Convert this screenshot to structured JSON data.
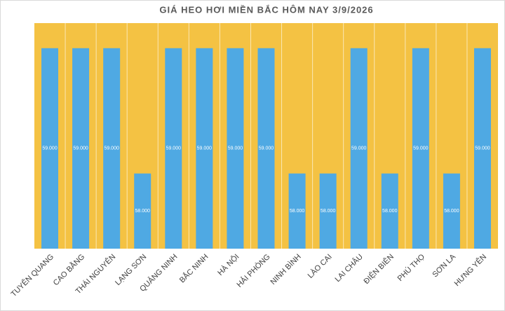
{
  "chart_data": {
    "type": "bar",
    "title": "GIÁ HEO HƠI MIỀN BẮC HÔM NAY 3/9/2026",
    "categories": [
      "TUYÊN QUANG",
      "CAO BẰNG",
      "THÁI NGUYÊN",
      "LẠNG SƠN",
      "QUẢNG NINH",
      "BẮC NINH",
      "HÀ NỘI",
      "HẢI PHÒNG",
      "NINH BÌNH",
      "LÀO CAI",
      "LAI CHÂU",
      "ĐIỆN BIÊN",
      "PHÚ THỌ",
      "SƠN LA",
      "HƯNG YÊN"
    ],
    "values": [
      59000,
      59000,
      59000,
      58000,
      59000,
      59000,
      59000,
      59000,
      58000,
      58000,
      59000,
      58000,
      59000,
      58000,
      59000
    ],
    "value_labels": [
      "59.000",
      "59.000",
      "59.000",
      "58.000",
      "59.000",
      "59.000",
      "59.000",
      "59.000",
      "58.000",
      "58.000",
      "59.000",
      "58.000",
      "59.000",
      "58.000",
      "59.000"
    ],
    "color": "#4fa9e3",
    "background": "#f4c243",
    "ylim": [
      57400,
      59200
    ]
  }
}
